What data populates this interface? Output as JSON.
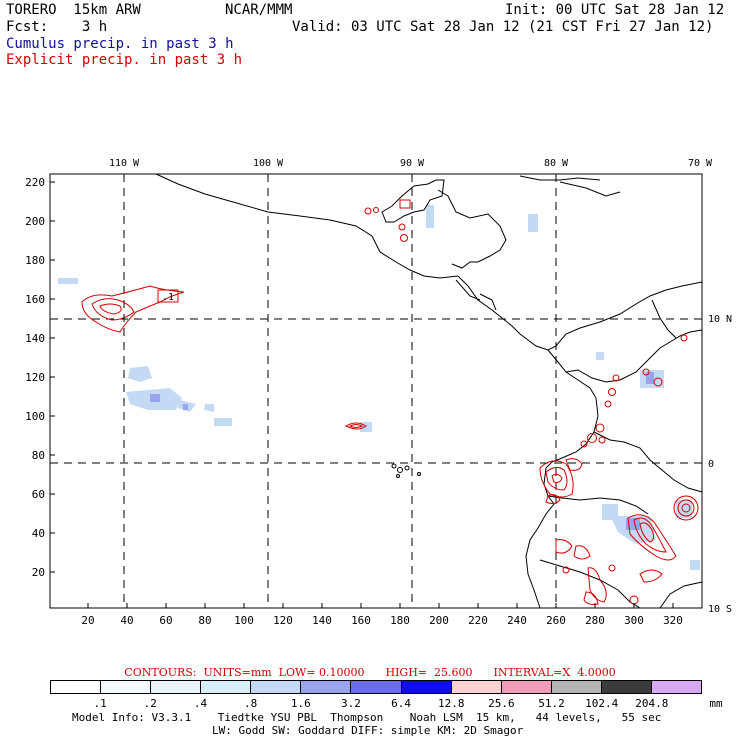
{
  "header": {
    "model": "TORERO  15km ARW",
    "org": "NCAR/MMM",
    "init": "Init: 00 UTC Sat 28 Jan 12",
    "fcst": "Fcst:    3 h",
    "valid": "Valid: 03 UTC Sat 28 Jan 12 (21 CST Fri 27 Jan 12)",
    "field1": "Cumulus precip. in past 3 h",
    "field2": "Explicit precip. in past 3 h"
  },
  "colors": {
    "field1": "#1010a0",
    "field2": "#d40000",
    "contour": "#d40000",
    "coast": "#000000"
  },
  "map": {
    "lon_labels": [
      "110 W",
      "100 W",
      "90 W",
      "80 W",
      "70 W"
    ],
    "lat_labels": [
      "10 N",
      "0",
      "10 S"
    ],
    "y_ticks": [
      "220",
      "200",
      "180",
      "160",
      "140",
      "120",
      "100",
      "80",
      "60",
      "40",
      "20"
    ],
    "x_ticks": [
      "20",
      "40",
      "60",
      "80",
      "100",
      "120",
      "140",
      "160",
      "180",
      "200",
      "220",
      "240",
      "260",
      "280",
      "300",
      "320"
    ],
    "box_label": ".1"
  },
  "contour_info": "CONTOURS:  UNITS=mm  LOW= 0.10000      HIGH=  25.600      INTERVAL=X  4.0000",
  "legend": {
    "colors": [
      "#ffffff",
      "#f4fafd",
      "#e8f4fa",
      "#d8eef8",
      "#c4daf4",
      "#9aa4ec",
      "#6c6cee",
      "#1010e6",
      "#fdd2d2",
      "#f29cbc",
      "#b4b4b4",
      "#3c3c3c",
      "#d8a8f4"
    ],
    "labels": [
      ".1",
      ".2",
      ".4",
      ".8",
      "1.6",
      "3.2",
      "6.4",
      "12.8",
      "25.6",
      "51.2",
      "102.4",
      "204.8"
    ],
    "unit": "mm"
  },
  "footer": {
    "line1": "Model Info: V3.3.1    Tiedtke YSU PBL  Thompson    Noah LSM  15 km,   44 levels,   55 sec",
    "line2": "LW: Godd SW: Goddard DIFF: simple KM: 2D Smagor"
  }
}
